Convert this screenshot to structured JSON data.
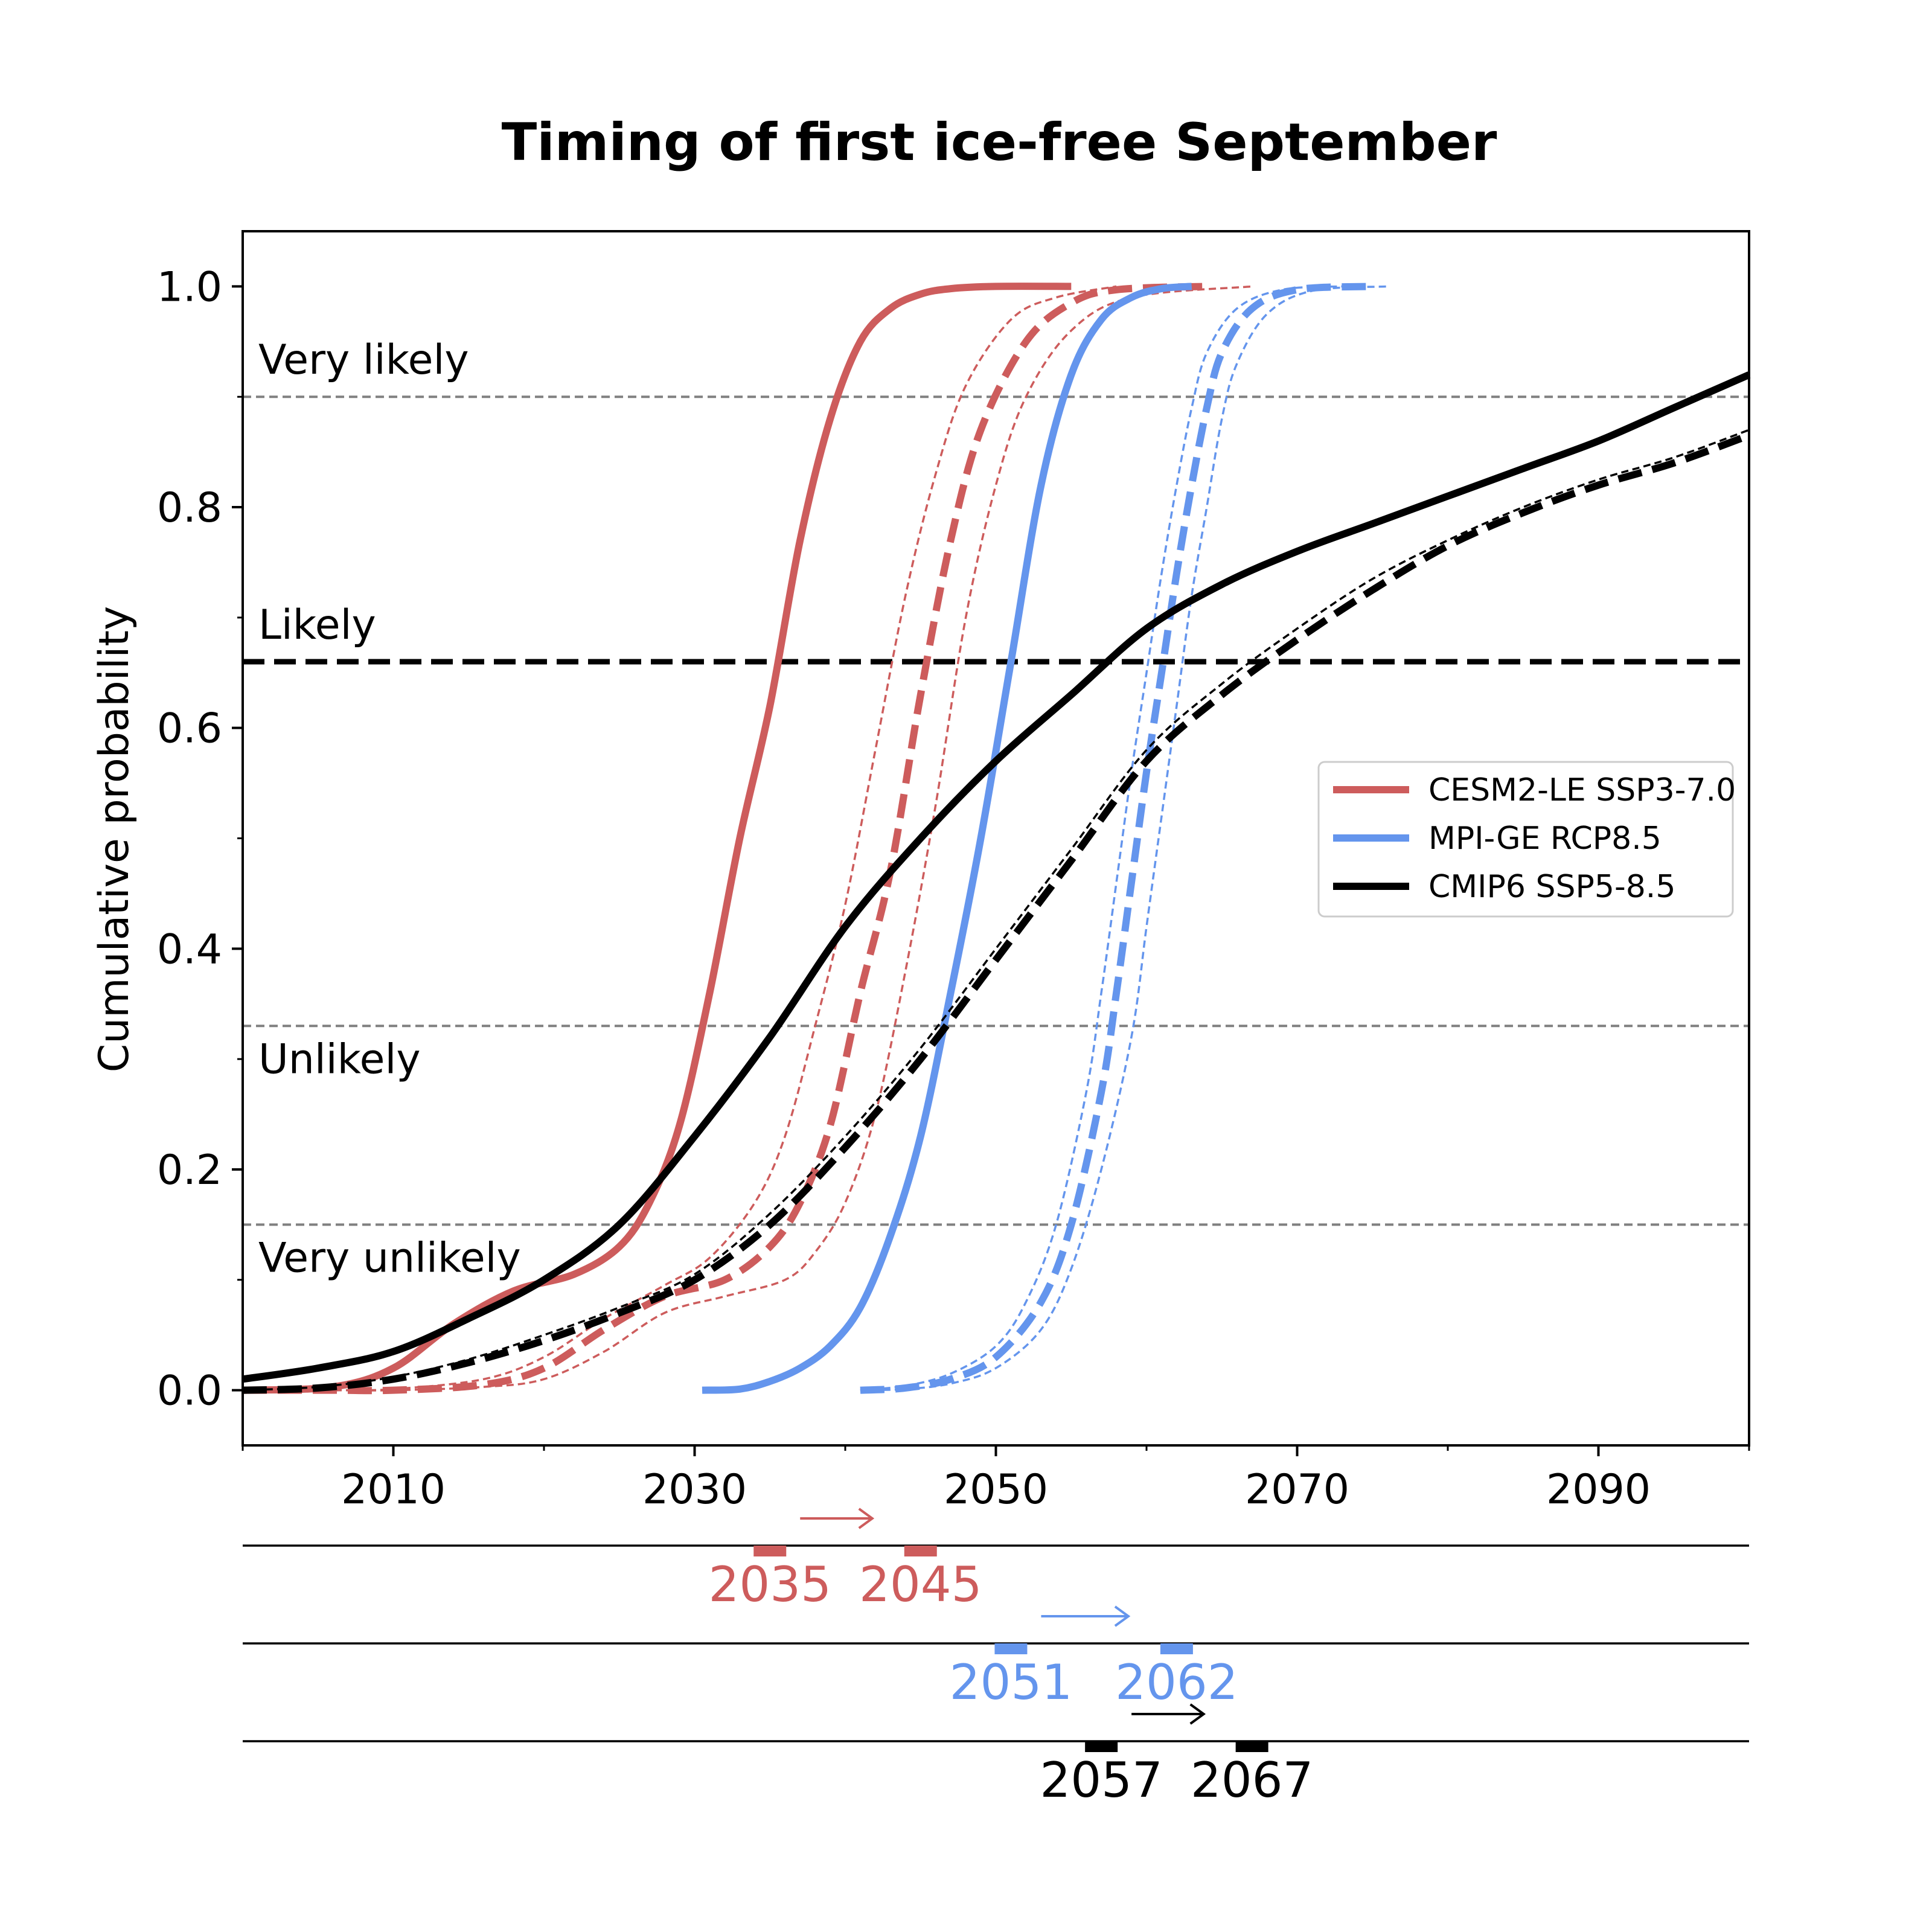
{
  "chart_data": {
    "type": "line",
    "title": "Timing of first ice-free September",
    "xlabel": "",
    "ylabel": "Cumulative probability",
    "xlim": [
      2000,
      2100
    ],
    "ylim": [
      -0.05,
      1.05
    ],
    "xticks": [
      2010,
      2030,
      2050,
      2070,
      2090
    ],
    "yticks": [
      0.0,
      0.2,
      0.4,
      0.6,
      0.8,
      1.0
    ],
    "ytick_labels": [
      "0.0",
      "0.2",
      "0.4",
      "0.6",
      "0.8",
      "1.0"
    ],
    "grid": false,
    "legend_position": "right",
    "thresholds": [
      {
        "label": "Very likely",
        "y": 0.9,
        "style": "thin-gray-dashed"
      },
      {
        "label": "Likely",
        "y": 0.66,
        "style": "thick-black-dashed"
      },
      {
        "label": "Unlikely",
        "y": 0.33,
        "style": "thin-gray-dashed"
      },
      {
        "label": "Very unlikely",
        "y": 0.15,
        "style": "thin-gray-dashed"
      }
    ],
    "series": [
      {
        "name": "CESM2-LE SSP3-7.0",
        "color": "#cd5c5c",
        "style": "solid",
        "legend": true,
        "x": [
          2000,
          2006,
          2010,
          2014,
          2018,
          2022,
          2025,
          2027,
          2029,
          2031,
          2033,
          2035,
          2037,
          2039,
          2041,
          2043,
          2045,
          2047,
          2050,
          2055
        ],
        "y": [
          0,
          0.003,
          0.02,
          0.06,
          0.09,
          0.105,
          0.13,
          0.17,
          0.24,
          0.36,
          0.5,
          0.62,
          0.77,
          0.88,
          0.95,
          0.98,
          0.993,
          0.998,
          1.0,
          1.0
        ]
      },
      {
        "name": "",
        "color": "#cd5c5c",
        "style": "dashed",
        "x": [
          2000,
          2006,
          2010,
          2016,
          2020,
          2024,
          2028,
          2032,
          2035,
          2037,
          2039,
          2041,
          2043,
          2045,
          2047,
          2049,
          2052,
          2055,
          2058,
          2064
        ],
        "y": [
          0,
          0,
          0.0,
          0.005,
          0.02,
          0.055,
          0.085,
          0.1,
          0.13,
          0.17,
          0.24,
          0.36,
          0.47,
          0.63,
          0.77,
          0.87,
          0.95,
          0.985,
          0.997,
          1.0
        ]
      },
      {
        "name": "",
        "color": "#cd5c5c",
        "style": "thin-dashed",
        "x": [
          2000,
          2006,
          2010,
          2016,
          2020,
          2024,
          2028,
          2031,
          2034,
          2036,
          2038,
          2040,
          2042,
          2044,
          2046,
          2048,
          2051,
          2054,
          2058
        ],
        "y": [
          0,
          0,
          0.001,
          0.01,
          0.03,
          0.065,
          0.095,
          0.12,
          0.17,
          0.23,
          0.33,
          0.44,
          0.58,
          0.72,
          0.83,
          0.91,
          0.97,
          0.99,
          1.0
        ]
      },
      {
        "name": "",
        "color": "#cd5c5c",
        "style": "thin-dashed",
        "x": [
          2000,
          2006,
          2010,
          2016,
          2020,
          2024,
          2028,
          2032,
          2036,
          2038,
          2040,
          2042,
          2044,
          2046,
          2048,
          2050,
          2052,
          2055,
          2059,
          2067
        ],
        "y": [
          0,
          0,
          0,
          0.003,
          0.01,
          0.035,
          0.07,
          0.085,
          0.1,
          0.125,
          0.17,
          0.25,
          0.38,
          0.53,
          0.7,
          0.82,
          0.9,
          0.96,
          0.99,
          1.0
        ]
      },
      {
        "name": "MPI-GE RCP8.5",
        "color": "#6495ed",
        "style": "solid",
        "legend": true,
        "x": [
          2030.5,
          2033,
          2035,
          2037,
          2039,
          2041,
          2043,
          2045,
          2047,
          2049,
          2051,
          2053,
          2055,
          2057,
          2059,
          2061,
          2063
        ],
        "y": [
          0,
          0.001,
          0.008,
          0.02,
          0.04,
          0.075,
          0.14,
          0.23,
          0.36,
          0.5,
          0.66,
          0.82,
          0.92,
          0.97,
          0.99,
          0.998,
          1.0
        ]
      },
      {
        "name": "",
        "color": "#6495ed",
        "style": "dashed",
        "x": [
          2041,
          2044,
          2047,
          2050,
          2053,
          2055,
          2057,
          2058,
          2059,
          2060,
          2061,
          2062,
          2063,
          2064,
          2065,
          2067,
          2070,
          2075
        ],
        "y": [
          0,
          0.002,
          0.01,
          0.03,
          0.08,
          0.15,
          0.27,
          0.36,
          0.46,
          0.56,
          0.65,
          0.74,
          0.82,
          0.89,
          0.94,
          0.98,
          0.997,
          1.0
        ]
      },
      {
        "name": "",
        "color": "#6495ed",
        "style": "thin-dashed",
        "x": [
          2041,
          2044,
          2047,
          2050,
          2052,
          2054,
          2056,
          2057,
          2058,
          2059,
          2060,
          2061,
          2062,
          2063,
          2064,
          2066,
          2069,
          2073
        ],
        "y": [
          0,
          0.004,
          0.015,
          0.04,
          0.08,
          0.15,
          0.27,
          0.36,
          0.46,
          0.56,
          0.65,
          0.74,
          0.82,
          0.89,
          0.94,
          0.98,
          0.997,
          1.0
        ]
      },
      {
        "name": "",
        "color": "#6495ed",
        "style": "thin-dashed",
        "x": [
          2041,
          2044,
          2047,
          2050,
          2053,
          2055,
          2057,
          2059,
          2060,
          2061,
          2062,
          2063,
          2064,
          2065,
          2066,
          2068,
          2071,
          2076
        ],
        "y": [
          0,
          0.001,
          0.006,
          0.02,
          0.055,
          0.11,
          0.2,
          0.32,
          0.42,
          0.52,
          0.62,
          0.72,
          0.8,
          0.88,
          0.93,
          0.975,
          0.996,
          1.0
        ]
      },
      {
        "name": "CMIP6 SSP5-8.5",
        "color": "#000000",
        "style": "solid",
        "legend": true,
        "x": [
          2000,
          2005,
          2010,
          2015,
          2020,
          2025,
          2030,
          2035,
          2040,
          2045,
          2050,
          2055,
          2060,
          2065,
          2070,
          2075,
          2080,
          2085,
          2090,
          2095,
          2100
        ],
        "y": [
          0.01,
          0.02,
          0.035,
          0.065,
          0.1,
          0.15,
          0.23,
          0.32,
          0.42,
          0.5,
          0.57,
          0.63,
          0.69,
          0.73,
          0.76,
          0.785,
          0.81,
          0.835,
          0.86,
          0.89,
          0.92
        ]
      },
      {
        "name": "",
        "color": "#000000",
        "style": "dashed",
        "x": [
          2000,
          2005,
          2010,
          2015,
          2020,
          2025,
          2030,
          2035,
          2040,
          2045,
          2050,
          2055,
          2060,
          2065,
          2070,
          2075,
          2080,
          2085,
          2090,
          2095,
          2100
        ],
        "y": [
          0.0,
          0.002,
          0.01,
          0.025,
          0.045,
          0.07,
          0.1,
          0.15,
          0.22,
          0.3,
          0.39,
          0.48,
          0.57,
          0.63,
          0.68,
          0.725,
          0.765,
          0.795,
          0.82,
          0.84,
          0.865
        ]
      },
      {
        "name": "",
        "color": "#000000",
        "style": "thin-dashed",
        "x": [
          2000,
          2005,
          2010,
          2015,
          2020,
          2025,
          2030,
          2035,
          2040,
          2045,
          2050,
          2055,
          2060,
          2065,
          2070,
          2075,
          2080,
          2085,
          2090,
          2095,
          2100
        ],
        "y": [
          0.0,
          0.003,
          0.012,
          0.028,
          0.05,
          0.075,
          0.105,
          0.16,
          0.23,
          0.31,
          0.4,
          0.49,
          0.58,
          0.64,
          0.69,
          0.735,
          0.77,
          0.8,
          0.825,
          0.845,
          0.87
        ]
      }
    ],
    "timelines": [
      {
        "color": "#cd5c5c",
        "from": 2035,
        "to": 2045,
        "labels": [
          "2035",
          "2045"
        ]
      },
      {
        "color": "#6495ed",
        "from": 2051,
        "to": 2062,
        "labels": [
          "2051",
          "2062"
        ]
      },
      {
        "color": "#000000",
        "from": 2057,
        "to": 2067,
        "labels": [
          "2057",
          "2067"
        ]
      }
    ]
  }
}
